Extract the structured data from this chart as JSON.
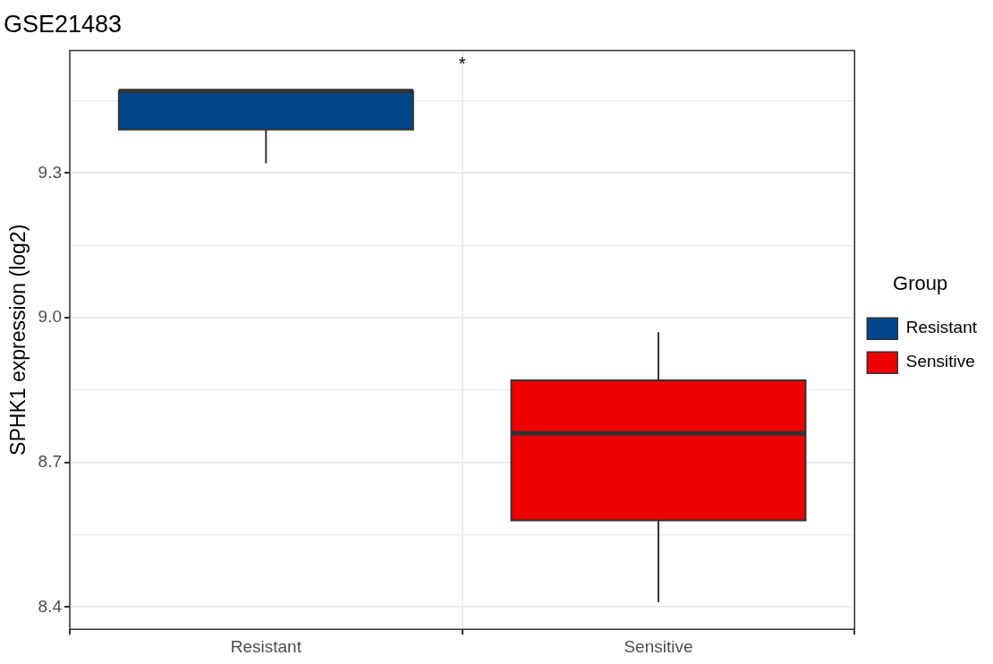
{
  "chart_data": {
    "type": "box",
    "title": "GSE21483",
    "ylabel": "SPHK1 expression (log2)",
    "legend_title": "Group",
    "legend": "right",
    "grid": true,
    "categories": [
      "Resistant",
      "Sensitive"
    ],
    "series": [
      {
        "name": "Resistant",
        "color": "#00468b",
        "boxes": [
          {
            "low": 9.32,
            "q1": 9.39,
            "median": 9.47,
            "q3": 9.47,
            "high": 9.47
          },
          null
        ]
      },
      {
        "name": "Sensitive",
        "color": "#ed0000",
        "boxes": [
          null,
          {
            "low": 8.41,
            "q1": 8.58,
            "median": 8.76,
            "q3": 8.87,
            "high": 8.97
          }
        ]
      }
    ],
    "ylim": [
      8.354,
      9.554
    ],
    "yticks": [
      8.4,
      {
        "value": 8.55,
        "label": null
      },
      8.7,
      {
        "value": 8.85,
        "label": null
      },
      {
        "value": 9.0,
        "label": "9.0"
      },
      {
        "value": 9.15,
        "label": null
      },
      9.3,
      {
        "value": 9.45,
        "label": null
      }
    ],
    "annotations": [
      "*"
    ]
  }
}
